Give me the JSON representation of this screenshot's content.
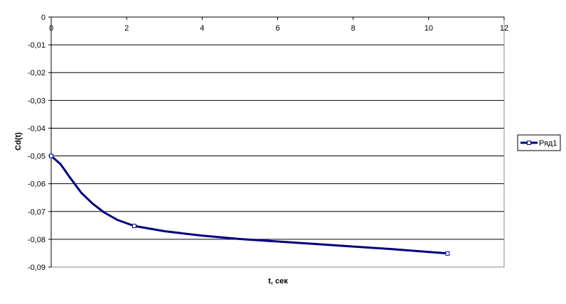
{
  "chart_data": {
    "type": "line",
    "title": "",
    "xlabel": "t, сек",
    "ylabel": "Cd(t)",
    "xlim": [
      0,
      12
    ],
    "ylim": [
      -0.09,
      0
    ],
    "x_ticks": [
      0,
      2,
      4,
      6,
      8,
      10,
      12
    ],
    "x_tick_labels": [
      "0",
      "2",
      "4",
      "6",
      "8",
      "10",
      "12"
    ],
    "y_ticks": [
      0,
      -0.01,
      -0.02,
      -0.03,
      -0.04,
      -0.05,
      -0.06,
      -0.07,
      -0.08,
      -0.09
    ],
    "y_tick_labels": [
      "0",
      "-0,01",
      "-0,02",
      "-0,03",
      "-0,04",
      "-0,05",
      "-0,06",
      "-0,07",
      "-0,08",
      "-0,09"
    ],
    "x_axis_position": "top",
    "grid": "horizontal",
    "legend": {
      "position": "right",
      "entries": [
        "Ряд1"
      ]
    },
    "series": [
      {
        "name": "Ряд1",
        "color": "#000080",
        "marker": "square",
        "x": [
          0,
          0.25,
          0.5,
          0.8,
          1.1,
          1.4,
          1.75,
          2.2,
          3.0,
          4.0,
          5.0,
          6.0,
          7.0,
          8.0,
          9.0,
          10.5
        ],
        "y": [
          -0.05,
          -0.053,
          -0.0578,
          -0.0633,
          -0.0672,
          -0.0703,
          -0.073,
          -0.0752,
          -0.0771,
          -0.0787,
          -0.0799,
          -0.0808,
          -0.0817,
          -0.0826,
          -0.0835,
          -0.0851
        ],
        "marker_x": [
          0,
          2.2,
          10.5
        ],
        "marker_y": [
          -0.05,
          -0.0752,
          -0.0851
        ]
      }
    ]
  }
}
